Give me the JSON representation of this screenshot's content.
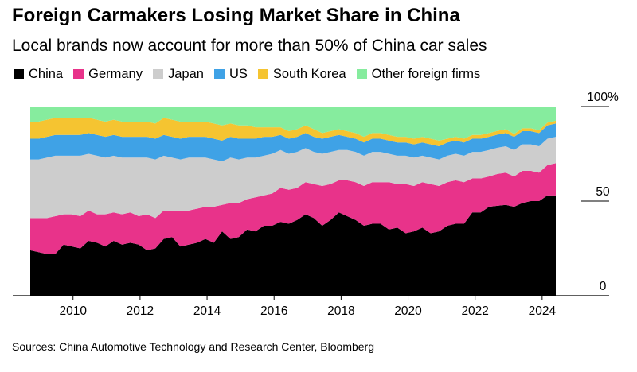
{
  "chart_data": {
    "type": "area",
    "stacked": true,
    "title": "Foreign Carmakers Losing Market Share in China",
    "subtitle": "Local brands now account for more than 50% of China car sales",
    "source": "Sources: China Automotive Technology and Research Center, Bloomberg",
    "x_start": 2008.25,
    "x_end": 2024.25,
    "xlim": [
      2008.2,
      2026.0
    ],
    "ylim": [
      0,
      100
    ],
    "x_ticks": [
      2010,
      2012,
      2014,
      2016,
      2018,
      2020,
      2022,
      2024
    ],
    "x_tick_labels": [
      "2010",
      "2012",
      "2014",
      "2016",
      "2018",
      "2020",
      "2022",
      "2024"
    ],
    "y_ticks": [
      0,
      50,
      100
    ],
    "y_tick_labels": [
      "0",
      "50",
      "100%"
    ],
    "series": [
      {
        "name": "China",
        "color": "#000000",
        "values": [
          24,
          23,
          22,
          22,
          27,
          26,
          25,
          29,
          28,
          26,
          29,
          27,
          28,
          27,
          24,
          25,
          30,
          31,
          26,
          27,
          28,
          30,
          28,
          34,
          30,
          31,
          35,
          34,
          37,
          37,
          39,
          38,
          40,
          43,
          41,
          37,
          40,
          44,
          42,
          40,
          37,
          38,
          38,
          35,
          36,
          33,
          34,
          36,
          33,
          34,
          37,
          38,
          38,
          44,
          44,
          47,
          48,
          48,
          47,
          49,
          50,
          50,
          53,
          53
        ]
      },
      {
        "name": "Germany",
        "color": "#e8338a",
        "values": [
          17,
          18,
          19,
          20,
          16,
          17,
          17,
          16,
          15,
          17,
          15,
          16,
          16,
          15,
          19,
          16,
          15,
          14,
          19,
          18,
          18,
          17,
          19,
          14,
          19,
          18,
          16,
          18,
          16,
          17,
          18,
          18,
          17,
          17,
          18,
          21,
          19,
          17,
          19,
          20,
          21,
          22,
          22,
          25,
          23,
          26,
          24,
          24,
          26,
          24,
          23,
          23,
          22,
          18,
          18,
          16,
          17,
          17,
          16,
          17,
          16,
          15,
          16,
          17
        ]
      },
      {
        "name": "Japan",
        "color": "#cdcdcd",
        "values": [
          31,
          31,
          32,
          32,
          31,
          31,
          32,
          30,
          31,
          30,
          30,
          30,
          29,
          31,
          30,
          31,
          29,
          28,
          27,
          28,
          27,
          26,
          25,
          23,
          24,
          23,
          22,
          21,
          21,
          21,
          20,
          19,
          19,
          18,
          17,
          17,
          17,
          16,
          16,
          16,
          16,
          16,
          16,
          15,
          15,
          15,
          15,
          14,
          14,
          14,
          14,
          14,
          14,
          14,
          14,
          14,
          14,
          14,
          14,
          14,
          14,
          14,
          14,
          14
        ]
      },
      {
        "name": "US",
        "color": "#3fa2e6",
        "values": [
          11,
          11,
          11,
          11,
          11,
          11,
          11,
          11,
          11,
          11,
          11,
          11,
          11,
          11,
          11,
          11,
          11,
          11,
          11,
          11,
          11,
          11,
          11,
          11,
          11,
          11,
          10,
          10,
          10,
          9,
          8,
          8,
          8,
          8,
          8,
          8,
          8,
          8,
          7,
          7,
          7,
          7,
          7,
          7,
          7,
          7,
          7,
          7,
          7,
          7,
          7,
          7,
          7,
          7,
          7,
          7,
          7,
          7,
          7,
          7,
          7,
          7,
          7,
          7
        ]
      },
      {
        "name": "South Korea",
        "color": "#f5c431",
        "values": [
          9,
          9,
          9,
          9,
          9,
          9,
          9,
          8,
          8,
          8,
          8,
          8,
          8,
          8,
          8,
          8,
          9,
          9,
          9,
          8,
          8,
          8,
          8,
          8,
          7,
          7,
          7,
          6,
          5,
          5,
          4,
          4,
          4,
          4,
          4,
          3,
          3,
          3,
          3,
          3,
          3,
          3,
          3,
          3,
          3,
          3,
          3,
          3,
          3,
          3,
          2,
          2,
          2,
          2,
          2,
          2,
          2,
          2,
          1.5,
          1.5,
          1.5,
          1.5,
          1.5,
          1.5
        ]
      },
      {
        "name": "Other foreign firms",
        "color": "#86ec9e",
        "values": [
          8,
          8,
          7,
          6,
          6,
          6,
          6,
          6,
          7,
          8,
          7,
          8,
          8,
          8,
          8,
          9,
          6,
          7,
          8,
          8,
          8,
          8,
          9,
          10,
          9,
          10,
          10,
          11,
          11,
          11,
          11,
          13,
          12,
          10,
          12,
          14,
          13,
          12,
          13,
          14,
          16,
          14,
          14,
          15,
          16,
          16,
          17,
          16,
          17,
          18,
          17,
          16,
          17,
          15,
          15,
          14,
          13,
          12,
          14.5,
          11.5,
          11.5,
          12.5,
          8.5,
          7.5
        ]
      }
    ]
  }
}
